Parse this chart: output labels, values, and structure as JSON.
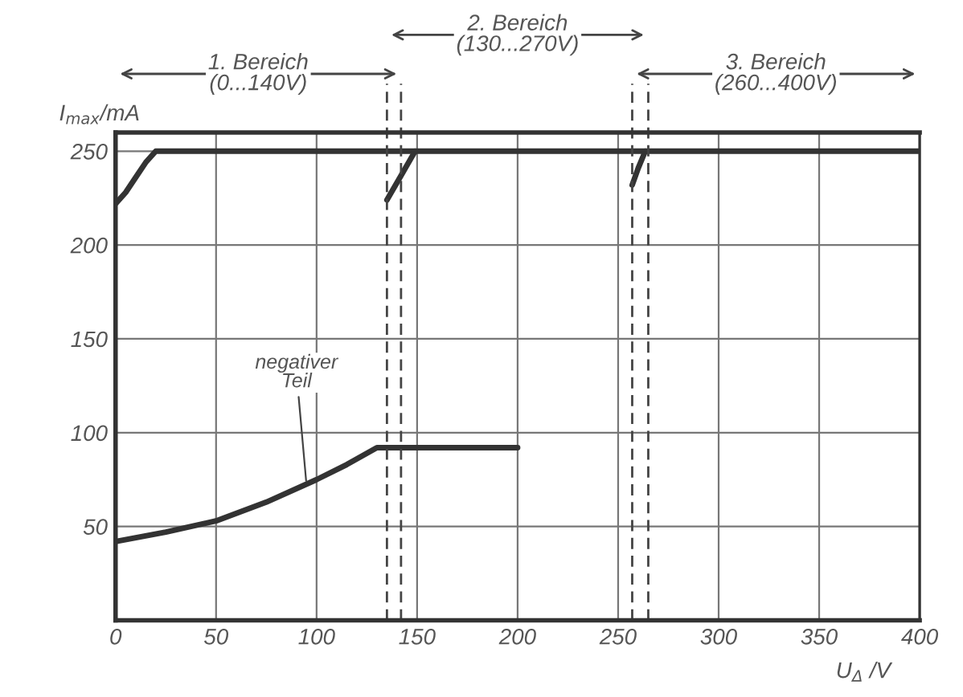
{
  "chart_data": {
    "type": "line",
    "xlabel": "U$_{Δ}$ /V",
    "ylabel": "I$_{max}$/mA",
    "series": [
      {
        "color": "#333333",
        "x": [
          0,
          5,
          10,
          15,
          20,
          400
        ],
        "values": [
          222,
          228,
          236,
          244,
          250,
          250
        ]
      },
      {
        "color": "#333333",
        "x": [
          135,
          142,
          149
        ],
        "values": [
          224,
          237,
          250
        ]
      },
      {
        "color": "#333333",
        "x": [
          257,
          260,
          263.5
        ],
        "values": [
          232,
          241,
          250
        ]
      },
      {
        "color": "#333333",
        "x": [
          0,
          25,
          50,
          75,
          100,
          115,
          130,
          200
        ],
        "values": [
          42,
          47,
          53,
          63,
          75,
          83,
          92,
          92
        ]
      }
    ],
    "annotations": [
      {
        "text": "negativer\nTeil",
        "x": 95,
        "y": 72
      },
      "1. Bereich\n(0...140V)",
      "2. Bereich\n(130...270V)",
      "3. Bereich\n(260...400V)"
    ],
    "ref_lines": [
      {
        "axis": "x",
        "value": 135,
        "line_style": "dashed"
      },
      {
        "axis": "x",
        "value": 142,
        "line_style": "dashed"
      },
      {
        "axis": "x",
        "value": 257,
        "line_style": "dashed"
      },
      {
        "axis": "x",
        "value": 265,
        "line_style": "dashed"
      }
    ],
    "xlim": [
      0,
      400
    ],
    "ylim": [
      0,
      260
    ],
    "xticks": [
      0,
      50,
      100,
      150,
      200,
      250,
      300,
      350,
      400
    ],
    "yticks": [
      50,
      100,
      150,
      200,
      250
    ],
    "grid": true,
    "legend": false,
    "marker": "none",
    "line_style": "solid"
  }
}
